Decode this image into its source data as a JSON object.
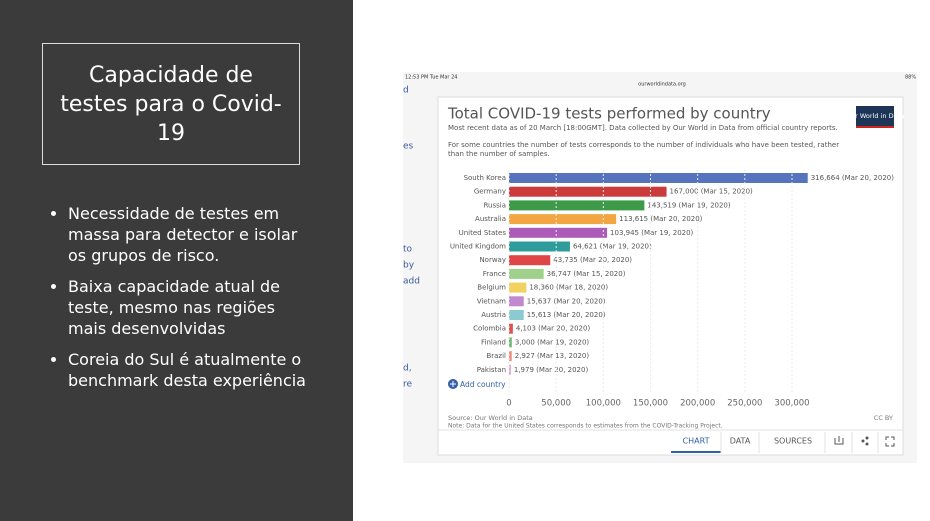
{
  "slide": {
    "title": "Capacidade de testes para o Covid-19",
    "bullets": [
      "Necessidade de testes em massa para detector e isolar os grupos de risco.",
      "Baixa capacidade atual de teste, mesmo nas regiões mais desenvolvidas",
      "Coreia do Sul é atualmente o benchmark desta experiência"
    ]
  },
  "screenshot": {
    "time": "12:53 PM  Tue Mar 24",
    "url": "ourworldindata.org",
    "battery": "88%",
    "left_fragments": [
      "d",
      "es",
      "to",
      "by",
      "add",
      "d,",
      "re"
    ],
    "logo": "Our World in Data",
    "add_country": "Add country",
    "source": "Source: Our World in Data",
    "license": "CC BY",
    "note": "Note: Data for the United States corresponds to estimates from the COVID-Tracking Project.",
    "tabs": [
      "CHART",
      "DATA",
      "SOURCES"
    ]
  },
  "chart_data": {
    "type": "bar",
    "orientation": "horizontal",
    "title": "Total COVID-19 tests performed by country",
    "subtitle": "Most recent data as of 20 March [18:00GMT]. Data collected by Our World in Data from official country reports.",
    "description": [
      "For some countries the number of tests corresponds to the number of individuals who have been tested, rather",
      "than the number of samples."
    ],
    "categories": [
      "South Korea",
      "Germany",
      "Russia",
      "Australia",
      "United States",
      "United Kingdom",
      "Norway",
      "France",
      "Belgium",
      "Vietnam",
      "Austria",
      "Colombia",
      "Finland",
      "Brazil",
      "Pakistan"
    ],
    "values": [
      316664,
      167000,
      143519,
      113615,
      103945,
      64621,
      43735,
      36747,
      18360,
      15637,
      15613,
      4103,
      3000,
      2927,
      1979
    ],
    "value_labels": [
      "316,664 (Mar 20, 2020)",
      "167,000 (Mar 15, 2020)",
      "143,519 (Mar 19, 2020)",
      "113,615 (Mar 20, 2020)",
      "103,945 (Mar 19, 2020)",
      "64,621 (Mar 19, 2020)",
      "43,735 (Mar 20, 2020)",
      "36,747 (Mar 15, 2020)",
      "18,360 (Mar 18, 2020)",
      "15,637 (Mar 20, 2020)",
      "15,613 (Mar 20, 2020)",
      "4,103 (Mar 20, 2020)",
      "3,000 (Mar 19, 2020)",
      "2,927 (Mar 13, 2020)",
      "1,979 (Mar 20, 2020)"
    ],
    "colors": [
      "#5574bd",
      "#cc3b3b",
      "#3d9a48",
      "#f2a541",
      "#ad5bb8",
      "#2f9c9c",
      "#e04646",
      "#9fd18d",
      "#f3d15e",
      "#c28acd",
      "#8ccad2",
      "#e05252",
      "#71bb71",
      "#f08f80",
      "#e4a3c4"
    ],
    "xlim": [
      0,
      320000
    ],
    "xticks": [
      0,
      {
        "value": 50000,
        "label": "50,000"
      },
      {
        "value": 100000,
        "label": "100,000"
      },
      {
        "value": 150000,
        "label": "150,000"
      },
      {
        "value": 200000,
        "label": "200,000"
      },
      {
        "value": 250000,
        "label": "250,000"
      },
      {
        "value": 300000,
        "label": "300,000"
      }
    ]
  }
}
